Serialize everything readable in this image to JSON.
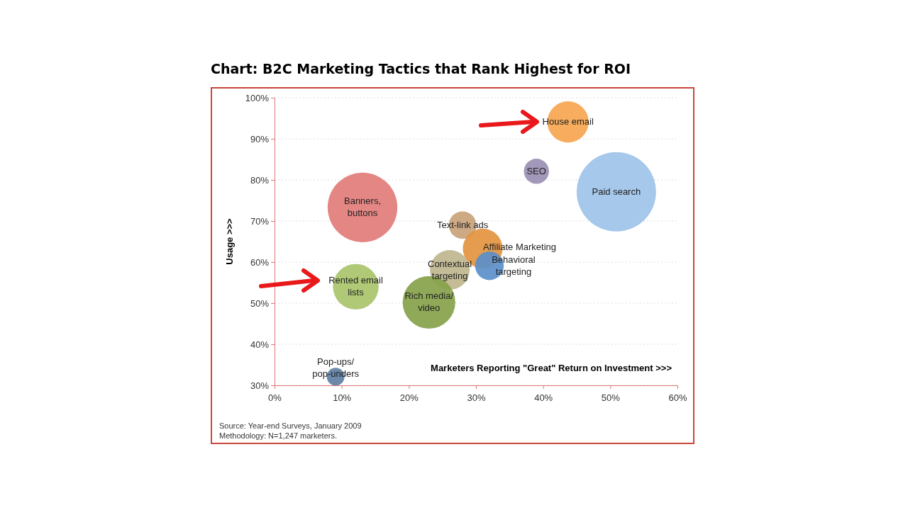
{
  "chart_data": {
    "type": "bubble",
    "title": "Chart: B2C Marketing Tactics that Rank Highest for ROI",
    "xlabel": "Marketers Reporting \"Great\" Return on Investment >>>",
    "ylabel": "Usage >>>",
    "xlim": [
      0,
      60
    ],
    "xticks": [
      {
        "value": 0,
        "label": "0%"
      },
      {
        "value": 10,
        "label": "10%"
      },
      {
        "value": 20,
        "label": "20%"
      },
      {
        "value": 30,
        "label": "30%"
      },
      {
        "value": 40,
        "label": "40%"
      },
      {
        "value": 50,
        "label": "50%"
      },
      {
        "value": 60,
        "label": "60%"
      }
    ],
    "ylim": [
      30,
      100
    ],
    "yticks": [
      {
        "value": 30,
        "label": "30%"
      },
      {
        "value": 40,
        "label": "40%"
      },
      {
        "value": 50,
        "label": "50%"
      },
      {
        "value": 60,
        "label": "60%"
      },
      {
        "value": 70,
        "label": "70%"
      },
      {
        "value": 80,
        "label": "80%"
      },
      {
        "value": 90,
        "label": "90%"
      },
      {
        "value": 100,
        "label": "100%"
      }
    ],
    "grid": "y",
    "series": [
      {
        "name": "House email",
        "color": "#f7a54f",
        "x": [
          43.7
        ],
        "values": [
          94.1
        ],
        "sizes": [
          0.27
        ]
      },
      {
        "name": "SEO",
        "color": "#9a8fb3",
        "x": [
          39.0
        ],
        "values": [
          82.1
        ],
        "sizes": [
          0.1
        ]
      },
      {
        "name": "Paid search",
        "color": "#9ec3e8",
        "x": [
          50.9
        ],
        "values": [
          77.1
        ],
        "sizes": [
          1
        ]
      },
      {
        "name": "Banners, buttons",
        "color": "#e27c7a",
        "x": [
          13.1
        ],
        "values": [
          73.3
        ],
        "sizes": [
          0.77
        ]
      },
      {
        "name": "Text-link ads",
        "color": "#c9a27a",
        "x": [
          28.0
        ],
        "values": [
          69.0
        ],
        "sizes": [
          0.12
        ]
      },
      {
        "name": "Affiliate Marketing",
        "color": "#e39440",
        "x": [
          31.0
        ],
        "values": [
          63.3
        ],
        "sizes": [
          0.25
        ]
      },
      {
        "name": "Contextual targeting",
        "color": "#bfb58e",
        "x": [
          26.1
        ],
        "values": [
          58.1
        ],
        "sizes": [
          0.25
        ]
      },
      {
        "name": "Behavioral targeting",
        "color": "#5b8fc9",
        "x": [
          32.0
        ],
        "values": [
          59.1
        ],
        "sizes": [
          0.13
        ]
      },
      {
        "name": "Rented email lists",
        "color": "#a9c46a",
        "x": [
          12.1
        ],
        "values": [
          54.0
        ],
        "sizes": [
          0.33
        ]
      },
      {
        "name": "Rich media/ video",
        "color": "#86a24a",
        "x": [
          23.0
        ],
        "values": [
          50.2
        ],
        "sizes": [
          0.44
        ]
      },
      {
        "name": "Pop-ups/ pop-unders",
        "color": "#5f7fa3",
        "x": [
          9.1
        ],
        "values": [
          32.1
        ],
        "sizes": [
          0.05
        ]
      }
    ],
    "annotations": [
      "Source: Year-end Surveys, January 2009",
      "Methodology: N=1,247 marketers."
    ]
  }
}
